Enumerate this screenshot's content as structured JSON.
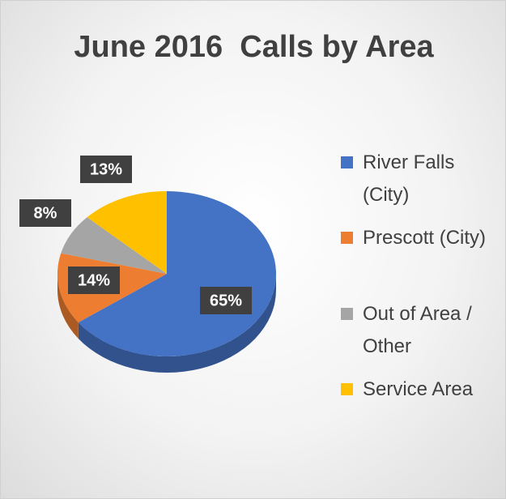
{
  "chart_data": {
    "type": "pie",
    "title": "June 2016  Calls by Area",
    "categories": [
      "River Falls (City)",
      "Prescott (City)",
      "Out of Area / Other",
      "Service Area"
    ],
    "values": [
      65,
      14,
      8,
      13
    ],
    "value_labels": [
      "65%",
      "14%",
      "8%",
      "13%"
    ],
    "colors": [
      "#4472c4",
      "#ed7d31",
      "#a5a5a5",
      "#ffc000"
    ],
    "legend": "right"
  }
}
